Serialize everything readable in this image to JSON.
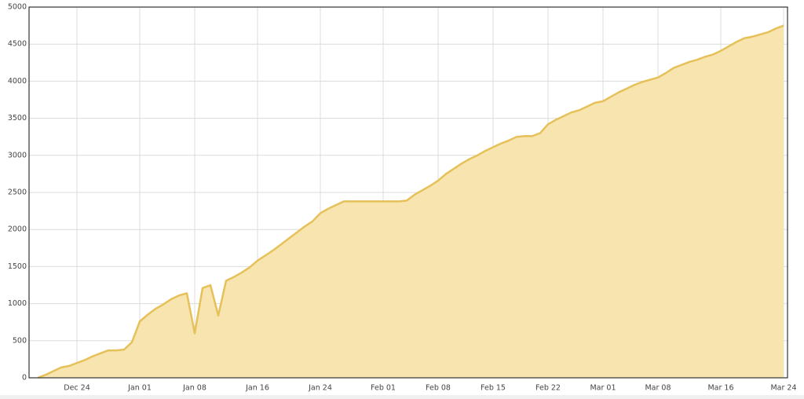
{
  "chart_data": {
    "type": "area",
    "x": [
      "Dec 19",
      "Dec 20",
      "Dec 21",
      "Dec 22",
      "Dec 23",
      "Dec 24",
      "Dec 25",
      "Dec 26",
      "Dec 27",
      "Dec 28",
      "Dec 29",
      "Dec 30",
      "Dec 31",
      "Jan 01",
      "Jan 02",
      "Jan 03",
      "Jan 04",
      "Jan 05",
      "Jan 06",
      "Jan 07",
      "Jan 08",
      "Jan 09",
      "Jan 10",
      "Jan 11",
      "Jan 12",
      "Jan 13",
      "Jan 14",
      "Jan 15",
      "Jan 16",
      "Jan 17",
      "Jan 18",
      "Jan 19",
      "Jan 20",
      "Jan 21",
      "Jan 22",
      "Jan 23",
      "Jan 24",
      "Jan 25",
      "Jan 26",
      "Jan 27",
      "Jan 28",
      "Jan 29",
      "Jan 30",
      "Jan 31",
      "Feb 01",
      "Feb 02",
      "Feb 03",
      "Feb 04",
      "Feb 05",
      "Feb 06",
      "Feb 07",
      "Feb 08",
      "Feb 09",
      "Feb 10",
      "Feb 11",
      "Feb 12",
      "Feb 13",
      "Feb 14",
      "Feb 15",
      "Feb 16",
      "Feb 17",
      "Feb 18",
      "Feb 19",
      "Feb 20",
      "Feb 21",
      "Feb 22",
      "Feb 23",
      "Feb 24",
      "Feb 25",
      "Feb 26",
      "Feb 27",
      "Feb 28",
      "Mar 01",
      "Mar 02",
      "Mar 03",
      "Mar 04",
      "Mar 05",
      "Mar 06",
      "Mar 07",
      "Mar 08",
      "Mar 09",
      "Mar 10",
      "Mar 11",
      "Mar 12",
      "Mar 13",
      "Mar 14",
      "Mar 15",
      "Mar 16",
      "Mar 17",
      "Mar 18",
      "Mar 19",
      "Mar 20",
      "Mar 21",
      "Mar 22",
      "Mar 23",
      "Mar 24"
    ],
    "values": [
      0,
      40,
      90,
      140,
      160,
      200,
      240,
      290,
      330,
      370,
      370,
      380,
      480,
      760,
      850,
      930,
      990,
      1060,
      1110,
      1140,
      600,
      1210,
      1250,
      840,
      1310,
      1360,
      1420,
      1490,
      1580,
      1650,
      1720,
      1800,
      1880,
      1960,
      2040,
      2110,
      2220,
      2280,
      2330,
      2380,
      2380,
      2380,
      2380,
      2380,
      2380,
      2380,
      2380,
      2390,
      2470,
      2530,
      2590,
      2660,
      2750,
      2820,
      2890,
      2950,
      3000,
      3060,
      3110,
      3160,
      3200,
      3250,
      3260,
      3260,
      3300,
      3420,
      3480,
      3530,
      3580,
      3610,
      3660,
      3710,
      3730,
      3790,
      3850,
      3900,
      3950,
      3990,
      4020,
      4050,
      4110,
      4180,
      4220,
      4260,
      4290,
      4330,
      4360,
      4410,
      4470,
      4530,
      4580,
      4600,
      4630,
      4660,
      4710,
      4750
    ],
    "color": "#e6c15a",
    "fill": "#f7e4ae",
    "xticks": [
      "Dec 24",
      "Jan 01",
      "Jan 08",
      "Jan 16",
      "Jan 24",
      "Feb 01",
      "Feb 08",
      "Feb 15",
      "Feb 22",
      "Mar 01",
      "Mar 08",
      "Mar 16",
      "Mar 24"
    ],
    "ylim": [
      0,
      5000
    ],
    "yticks": [
      0,
      500,
      1000,
      1500,
      2000,
      2500,
      3000,
      3500,
      4000,
      4500,
      5000
    ],
    "grid": true
  }
}
